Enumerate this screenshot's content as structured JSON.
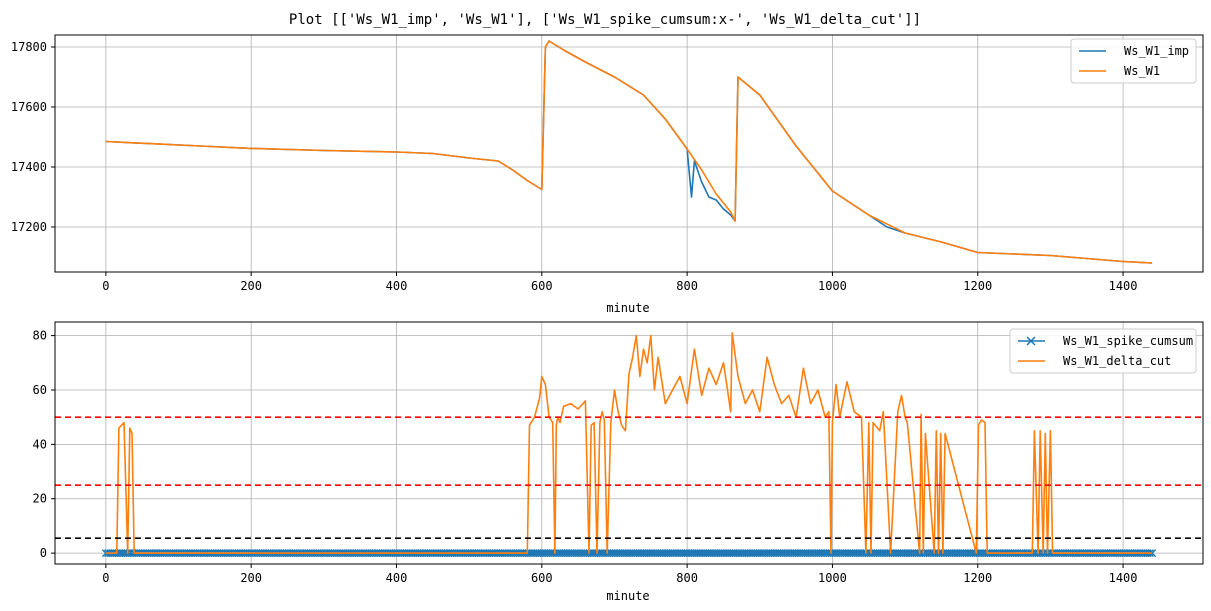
{
  "title": "Plot [['Ws_W1_imp', 'Ws_W1'], ['Ws_W1_spike_cumsum:x-', 'Ws_W1_delta_cut']]",
  "colors": {
    "blue": "#1f77b4",
    "orange": "#ff7f0e",
    "red": "#ff0000",
    "black": "#000000",
    "grid": "#b0b0b0"
  },
  "chart_data": [
    {
      "type": "line",
      "xlabel": "minute",
      "ylabel": "",
      "xlim": [
        -70,
        1510
      ],
      "ylim": [
        17050,
        17840
      ],
      "xticks": [
        0,
        200,
        400,
        600,
        800,
        1000,
        1200,
        1400
      ],
      "yticks": [
        17200,
        17400,
        17600,
        17800
      ],
      "grid": true,
      "legend": "top-right",
      "series": [
        {
          "name": "Ws_W1_imp",
          "color": "blue",
          "x": [
            0,
            60,
            130,
            200,
            300,
            400,
            450,
            500,
            540,
            560,
            580,
            600,
            605,
            610,
            630,
            660,
            700,
            740,
            770,
            800,
            806,
            810,
            820,
            830,
            840,
            850,
            860,
            866,
            870,
            900,
            950,
            1000,
            1050,
            1075,
            1100,
            1150,
            1200,
            1300,
            1400,
            1440
          ],
          "y": [
            17485,
            17478,
            17470,
            17462,
            17455,
            17450,
            17445,
            17430,
            17420,
            17390,
            17355,
            17325,
            17800,
            17820,
            17790,
            17750,
            17700,
            17640,
            17560,
            17460,
            17300,
            17420,
            17350,
            17300,
            17290,
            17260,
            17240,
            17220,
            17700,
            17640,
            17470,
            17320,
            17240,
            17200,
            17180,
            17150,
            17115,
            17105,
            17085,
            17080
          ]
        },
        {
          "name": "Ws_W1",
          "color": "orange",
          "x": [
            0,
            60,
            130,
            200,
            300,
            400,
            450,
            500,
            540,
            560,
            580,
            600,
            605,
            610,
            630,
            660,
            700,
            740,
            770,
            800,
            820,
            840,
            850,
            860,
            866,
            870,
            900,
            950,
            1000,
            1050,
            1100,
            1150,
            1200,
            1300,
            1400,
            1440
          ],
          "y": [
            17485,
            17478,
            17470,
            17462,
            17455,
            17450,
            17445,
            17430,
            17420,
            17390,
            17355,
            17325,
            17800,
            17820,
            17790,
            17750,
            17700,
            17640,
            17560,
            17460,
            17390,
            17310,
            17280,
            17250,
            17220,
            17700,
            17640,
            17470,
            17320,
            17240,
            17180,
            17150,
            17115,
            17105,
            17085,
            17080
          ]
        }
      ]
    },
    {
      "type": "line",
      "xlabel": "minute",
      "ylabel": "",
      "xlim": [
        -70,
        1510
      ],
      "ylim": [
        -4,
        85
      ],
      "xticks": [
        0,
        200,
        400,
        600,
        800,
        1000,
        1200,
        1400
      ],
      "yticks": [
        0,
        20,
        40,
        60,
        80
      ],
      "grid": true,
      "legend": "top-right",
      "hlines": [
        {
          "y": 50,
          "color": "red",
          "style": "dashed"
        },
        {
          "y": 25,
          "color": "red",
          "style": "dashed"
        },
        {
          "y": 5.5,
          "color": "black",
          "style": "dashed"
        }
      ],
      "series": [
        {
          "name": "Ws_W1_spike_cumsum",
          "color": "blue",
          "marker": "x",
          "x": [
            0,
            1440
          ],
          "y": [
            0,
            0
          ]
        },
        {
          "name": "Ws_W1_delta_cut",
          "color": "orange",
          "x": [
            0,
            15,
            18,
            25,
            30,
            33,
            36,
            39,
            580,
            583,
            590,
            597,
            600,
            605,
            610,
            615,
            618,
            620,
            622,
            625,
            630,
            640,
            650,
            660,
            665,
            668,
            672,
            676,
            680,
            683,
            686,
            690,
            695,
            700,
            705,
            710,
            715,
            720,
            725,
            730,
            735,
            740,
            745,
            750,
            755,
            760,
            770,
            780,
            790,
            800,
            810,
            820,
            830,
            840,
            850,
            860,
            862,
            870,
            880,
            890,
            900,
            910,
            920,
            930,
            940,
            950,
            960,
            970,
            980,
            990,
            995,
            998,
            1000,
            1005,
            1010,
            1020,
            1030,
            1040,
            1046,
            1050,
            1053,
            1056,
            1065,
            1070,
            1080,
            1090,
            1095,
            1100,
            1103,
            1120,
            1122,
            1125,
            1128,
            1140,
            1143,
            1146,
            1149,
            1152,
            1155,
            1198,
            1201,
            1205,
            1210,
            1213,
            1275,
            1278,
            1283,
            1286,
            1290,
            1293,
            1296,
            1300,
            1303,
            1440
          ],
          "y": [
            0,
            0,
            46,
            48,
            0,
            46,
            44,
            0,
            0,
            47,
            50,
            57,
            65,
            62,
            50,
            48,
            0,
            47,
            50,
            48,
            54,
            55,
            53,
            56,
            0,
            47,
            48,
            0,
            48,
            52,
            49,
            0,
            48,
            60,
            52,
            47,
            45,
            66,
            72,
            80,
            65,
            75,
            70,
            80,
            60,
            72,
            55,
            60,
            65,
            55,
            75,
            58,
            68,
            62,
            70,
            52,
            81,
            65,
            55,
            60,
            52,
            72,
            62,
            55,
            58,
            50,
            68,
            55,
            60,
            50,
            52,
            0,
            48,
            62,
            50,
            63,
            52,
            50,
            0,
            48,
            0,
            48,
            45,
            52,
            0,
            52,
            58,
            50,
            48,
            0,
            51,
            0,
            44,
            0,
            45,
            0,
            44,
            0,
            44,
            0,
            47,
            49,
            48,
            0,
            0,
            45,
            0,
            45,
            0,
            44,
            0,
            45,
            0,
            0
          ]
        }
      ]
    }
  ]
}
